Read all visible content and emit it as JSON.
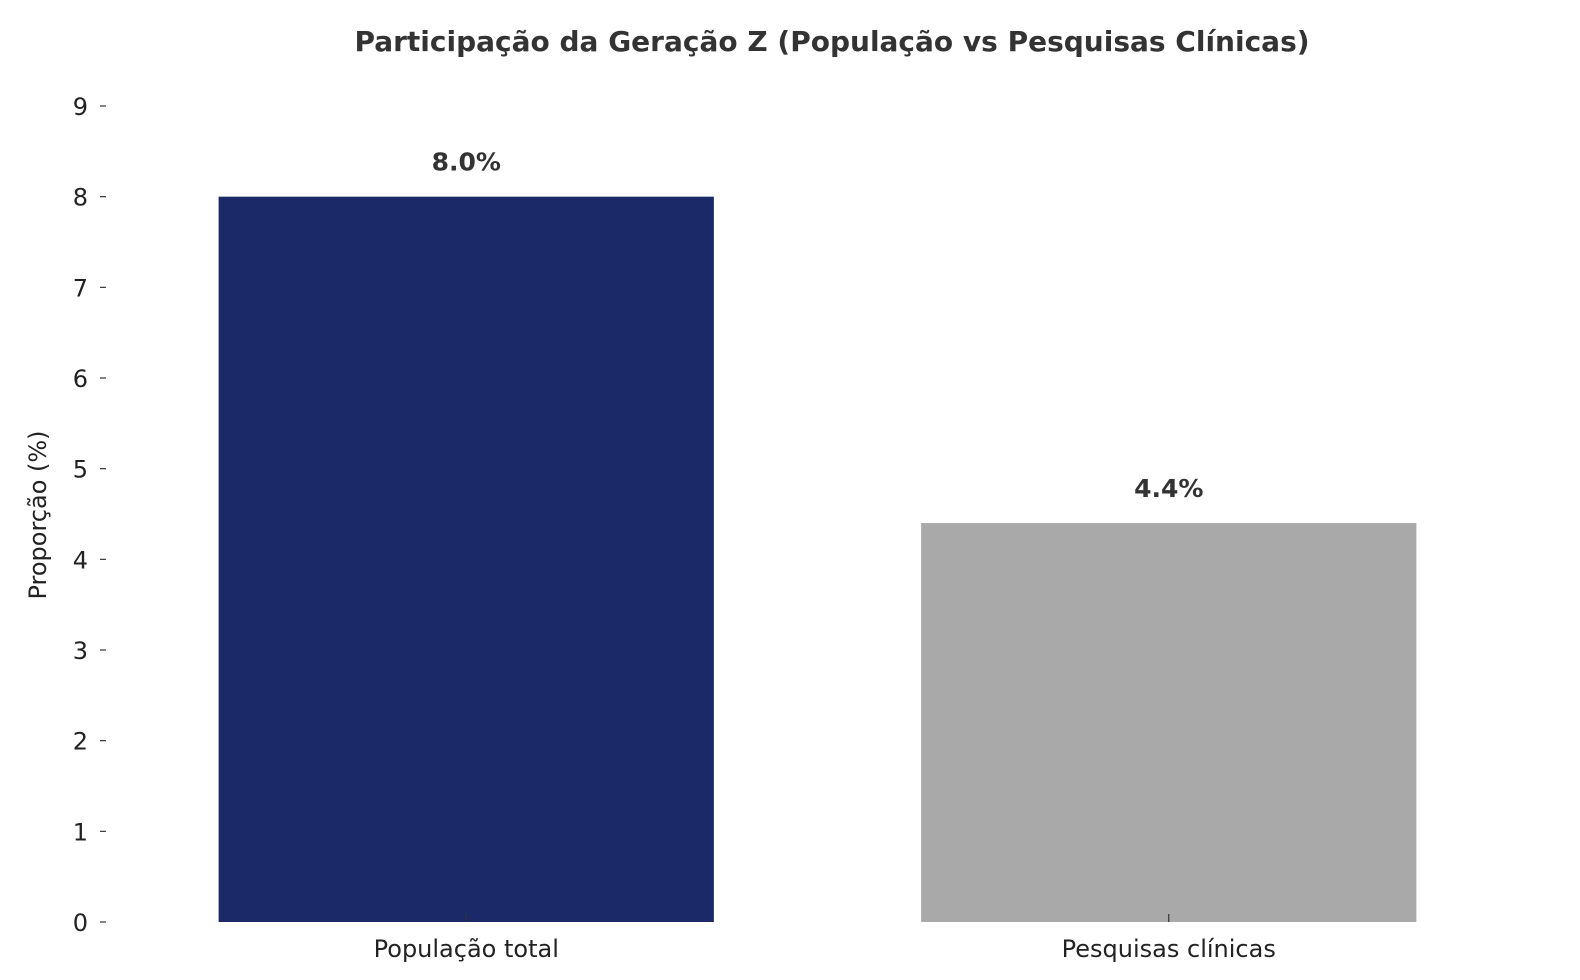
{
  "chart_data": {
    "type": "bar",
    "title": "Participação da Geração Z (População vs Pesquisas Clínicas)",
    "xlabel": "",
    "ylabel": "Proporção (%)",
    "categories": [
      "População total",
      "Pesquisas clínicas"
    ],
    "values": [
      8.0,
      4.4
    ],
    "data_labels": [
      "8.0%",
      "4.4%"
    ],
    "colors": [
      "#1c2968",
      "#a9a9a9"
    ],
    "ylim": [
      0,
      9
    ],
    "yticks": [
      0,
      1,
      2,
      3,
      4,
      5,
      6,
      7,
      8,
      9
    ],
    "ytick_labels": [
      "0",
      "1",
      "2",
      "3",
      "4",
      "5",
      "6",
      "7",
      "8",
      "9"
    ],
    "grid": false,
    "legend": "none"
  }
}
